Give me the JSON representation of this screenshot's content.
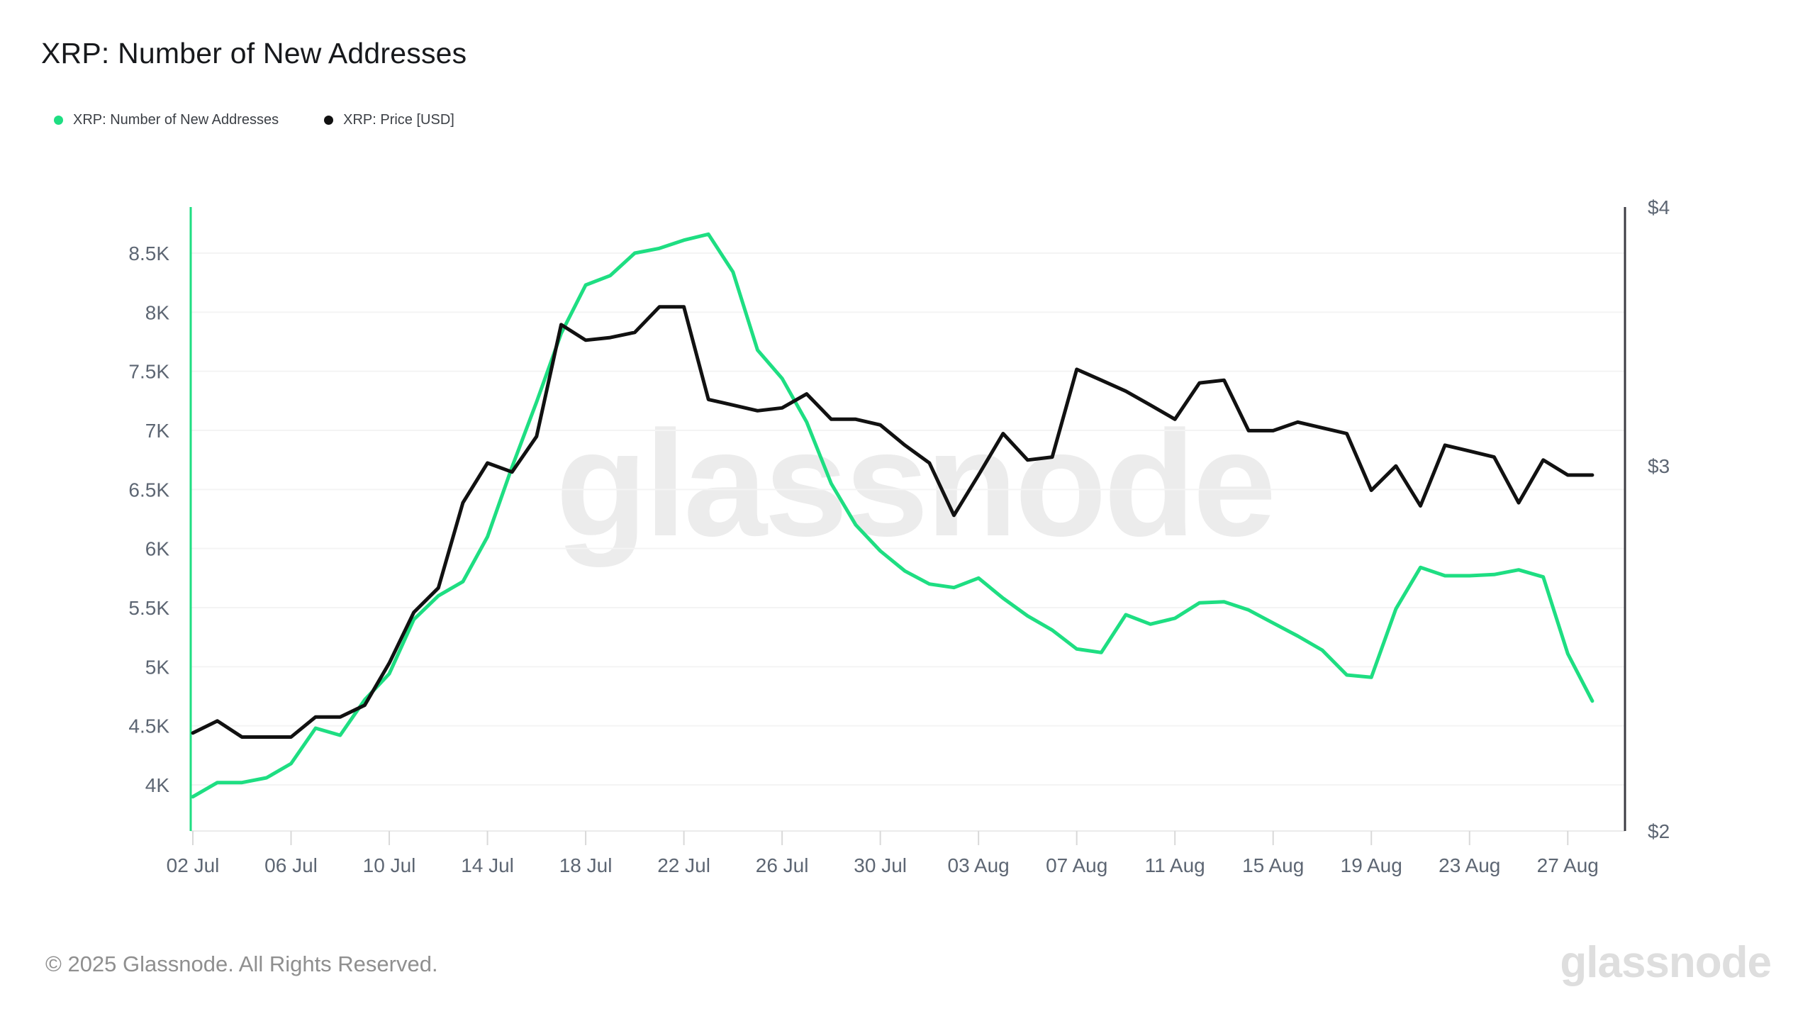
{
  "header": {
    "title": "XRP: Number of New Addresses"
  },
  "legend": [
    {
      "label": "XRP: Number of New Addresses",
      "color": "#1ede82"
    },
    {
      "label": "XRP: Price [USD]",
      "color": "#111111"
    }
  ],
  "watermark": {
    "center_text": "glassnode",
    "corner_text": "glassnode"
  },
  "footer": {
    "copyright": "© 2025 Glassnode. All Rights Reserved."
  },
  "chart_data": {
    "type": "line",
    "title": "XRP: Number of New Addresses",
    "grid": true,
    "legend_position": "top-left",
    "x": [
      "02 Jul",
      "03 Jul",
      "04 Jul",
      "05 Jul",
      "06 Jul",
      "07 Jul",
      "08 Jul",
      "09 Jul",
      "10 Jul",
      "11 Jul",
      "12 Jul",
      "13 Jul",
      "14 Jul",
      "15 Jul",
      "16 Jul",
      "17 Jul",
      "18 Jul",
      "19 Jul",
      "20 Jul",
      "21 Jul",
      "22 Jul",
      "23 Jul",
      "24 Jul",
      "25 Jul",
      "26 Jul",
      "27 Jul",
      "28 Jul",
      "29 Jul",
      "30 Jul",
      "31 Jul",
      "01 Aug",
      "02 Aug",
      "03 Aug",
      "04 Aug",
      "05 Aug",
      "06 Aug",
      "07 Aug",
      "08 Aug",
      "09 Aug",
      "10 Aug",
      "11 Aug",
      "12 Aug",
      "13 Aug",
      "14 Aug",
      "15 Aug",
      "16 Aug",
      "17 Aug",
      "18 Aug",
      "19 Aug",
      "20 Aug",
      "21 Aug",
      "22 Aug",
      "23 Aug",
      "24 Aug",
      "25 Aug",
      "26 Aug",
      "27 Aug",
      "28 Aug"
    ],
    "series": [
      {
        "name": "XRP: Number of New Addresses",
        "color": "#1ede82",
        "axis": "left",
        "unit": "K addresses",
        "values": [
          3.9,
          4.02,
          4.02,
          4.06,
          4.18,
          4.48,
          4.42,
          4.72,
          4.94,
          5.4,
          5.6,
          5.72,
          6.1,
          6.69,
          7.24,
          7.82,
          8.23,
          8.31,
          8.5,
          8.54,
          8.61,
          8.66,
          8.34,
          7.68,
          7.44,
          7.07,
          6.55,
          6.2,
          5.98,
          5.81,
          5.7,
          5.67,
          5.75,
          5.58,
          5.43,
          5.31,
          5.15,
          5.12,
          5.44,
          5.36,
          5.41,
          5.54,
          5.55,
          5.48,
          5.37,
          5.26,
          5.14,
          4.93,
          4.91,
          5.49,
          5.84,
          5.77,
          5.77,
          5.78,
          5.82,
          5.76,
          5.11,
          4.71
        ]
      },
      {
        "name": "XRP: Price [USD]",
        "color": "#111111",
        "axis": "right",
        "unit": "USD",
        "values": [
          2.23,
          2.26,
          2.22,
          2.22,
          2.22,
          2.27,
          2.27,
          2.3,
          2.41,
          2.55,
          2.62,
          2.88,
          3.01,
          2.98,
          3.1,
          3.51,
          3.45,
          3.46,
          3.48,
          3.58,
          3.58,
          3.23,
          3.21,
          3.19,
          3.2,
          3.25,
          3.16,
          3.16,
          3.14,
          3.07,
          3.01,
          2.84,
          2.97,
          3.11,
          3.02,
          3.03,
          3.34,
          3.3,
          3.26,
          3.21,
          3.16,
          3.29,
          3.3,
          3.12,
          3.12,
          3.15,
          3.13,
          3.11,
          2.92,
          3.0,
          2.87,
          3.07,
          3.05,
          3.03,
          2.88,
          3.02,
          2.97,
          2.97
        ]
      }
    ],
    "axes": {
      "left": {
        "scale": "linear",
        "min": 3.61,
        "max": 8.89,
        "ticks": [
          {
            "value": 4.0,
            "label": "4K"
          },
          {
            "value": 4.5,
            "label": "4.5K"
          },
          {
            "value": 5.0,
            "label": "5K"
          },
          {
            "value": 5.5,
            "label": "5.5K"
          },
          {
            "value": 6.0,
            "label": "6K"
          },
          {
            "value": 6.5,
            "label": "6.5K"
          },
          {
            "value": 7.0,
            "label": "7K"
          },
          {
            "value": 7.5,
            "label": "7.5K"
          },
          {
            "value": 8.0,
            "label": "8K"
          },
          {
            "value": 8.5,
            "label": "8.5K"
          }
        ]
      },
      "right": {
        "scale": "log",
        "min": 2,
        "max": 4,
        "ticks": [
          {
            "value": 2,
            "label": "$2"
          },
          {
            "value": 3,
            "label": "$3"
          },
          {
            "value": 4,
            "label": "$4"
          }
        ]
      },
      "x": {
        "ticks": [
          {
            "i": 0,
            "label": "02 Jul"
          },
          {
            "i": 4,
            "label": "06 Jul"
          },
          {
            "i": 8,
            "label": "10 Jul"
          },
          {
            "i": 12,
            "label": "14 Jul"
          },
          {
            "i": 16,
            "label": "18 Jul"
          },
          {
            "i": 20,
            "label": "22 Jul"
          },
          {
            "i": 24,
            "label": "26 Jul"
          },
          {
            "i": 28,
            "label": "30 Jul"
          },
          {
            "i": 32,
            "label": "03 Aug"
          },
          {
            "i": 36,
            "label": "07 Aug"
          },
          {
            "i": 40,
            "label": "11 Aug"
          },
          {
            "i": 44,
            "label": "15 Aug"
          },
          {
            "i": 48,
            "label": "19 Aug"
          },
          {
            "i": 52,
            "label": "23 Aug"
          },
          {
            "i": 56,
            "label": "27 Aug"
          }
        ]
      }
    },
    "colors": {
      "grid": "#f4f4f4",
      "baseline": "#ebebeb",
      "tick": "#d9d9d9",
      "axis_text": "#5d6673",
      "left_axis_line": "#1ede82",
      "right_axis_line": "#3c3c43"
    }
  }
}
